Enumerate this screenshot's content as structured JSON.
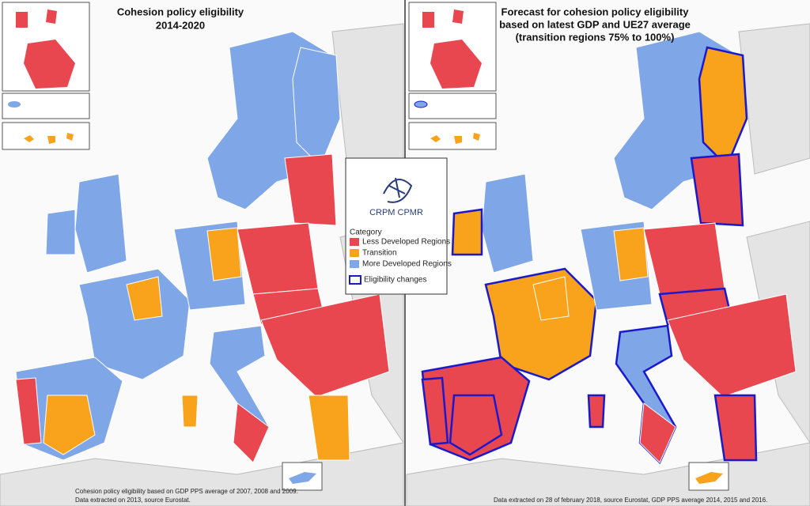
{
  "left_map": {
    "title": [
      "Cohesion policy eligibility",
      "2014-2020"
    ],
    "footnote": [
      "Cohesion policy eligibility based on GDP PPS average of 2007, 2008 and 2009.",
      "Data extracted on 2013, source Eurostat."
    ]
  },
  "right_map": {
    "title": [
      "Forecast for cohesion policy eligibility",
      "based on latest GDP and UE27 average",
      "(transition  regions 75% to 100%)"
    ],
    "footnote": [
      "Data extracted on 28 of february 2018, source Eurostat, GDP PPS average 2014, 2015 and 2016."
    ]
  },
  "legend": {
    "logo": "CRPM CPMR",
    "heading": "Category",
    "items": [
      {
        "label": "Less Developed Regions",
        "color": "#e8474f"
      },
      {
        "label": "Transition",
        "color": "#f9a21b"
      },
      {
        "label": "More Developed Regions",
        "color": "#7fa7e8"
      }
    ],
    "changes": {
      "label": "Eligibility changes",
      "color": "#1a1acc"
    }
  }
}
